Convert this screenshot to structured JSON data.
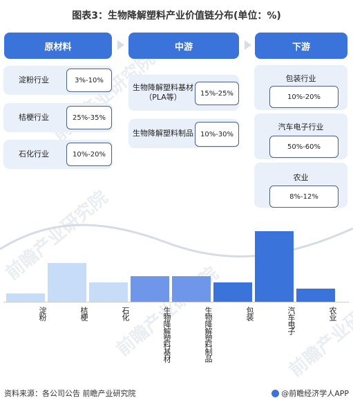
{
  "title": "图表3：生物降解塑料产业价值链分布(单位：%)",
  "columns": {
    "upstream": {
      "header": "原材料",
      "items": [
        {
          "label": "淀粉行业",
          "range": "3%-10%"
        },
        {
          "label": "桔梗行业",
          "range": "25%-35%"
        },
        {
          "label": "石化行业",
          "range": "10%-20%"
        }
      ]
    },
    "midstream": {
      "header": "中游",
      "items": [
        {
          "label": "生物降解塑料基材（PLA等）",
          "range": "15%-25%"
        },
        {
          "label": "生物降解塑料制品",
          "range": "10%-30%"
        }
      ]
    },
    "downstream": {
      "header": "下游",
      "items": [
        {
          "label": "包装行业",
          "range": "10%-20%"
        },
        {
          "label": "汽车电子行业",
          "range": "50%-60%"
        },
        {
          "label": "农业",
          "range": "8%-12%"
        }
      ]
    }
  },
  "chart_data": {
    "type": "bar",
    "categories": [
      "淀粉",
      "桔梗",
      "石化",
      "生物降解塑料基材",
      "生物降解塑料制品",
      "包装",
      "汽车电子",
      "农业"
    ],
    "values": [
      6.5,
      30,
      15,
      20,
      20,
      15,
      55,
      10
    ],
    "ylim": [
      0,
      55
    ],
    "colors": [
      "#c6dcf7",
      "#c6dcf7",
      "#c6dcf7",
      "#6f96e8",
      "#6f96e8",
      "#3a73d9",
      "#3a73d9",
      "#3a73d9"
    ],
    "grid": false,
    "legend": "none"
  },
  "footer": {
    "source": "资料来源：各公司公告 前瞻产业研究院",
    "brand": "@前瞻经济学人APP"
  },
  "watermark": "前瞻产业研究院",
  "colors": {
    "accent": "#3a73d9",
    "row_bg": "#eaf0fa",
    "arrow": "#d8dde6"
  }
}
